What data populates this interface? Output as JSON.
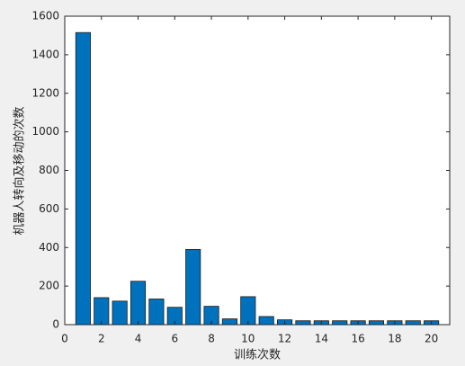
{
  "chart_data": {
    "type": "bar",
    "x_label": "训练次数",
    "y_label": "机器人转向及移动的次数",
    "x": [
      1,
      2,
      3,
      4,
      5,
      6,
      7,
      8,
      9,
      10,
      11,
      12,
      13,
      14,
      15,
      16,
      17,
      18,
      19,
      20
    ],
    "values": [
      1515,
      140,
      122,
      225,
      133,
      90,
      390,
      95,
      30,
      145,
      42,
      25,
      20,
      20,
      20,
      20,
      20,
      20,
      20,
      20
    ],
    "color": "#0072bd",
    "xlim": [
      0,
      21
    ],
    "xticks": [
      0,
      2,
      4,
      6,
      8,
      10,
      12,
      14,
      16,
      18,
      20
    ],
    "ylim": [
      0,
      1600
    ],
    "yticks": [
      0,
      200,
      400,
      600,
      800,
      1000,
      1200,
      1400,
      1600
    ]
  }
}
